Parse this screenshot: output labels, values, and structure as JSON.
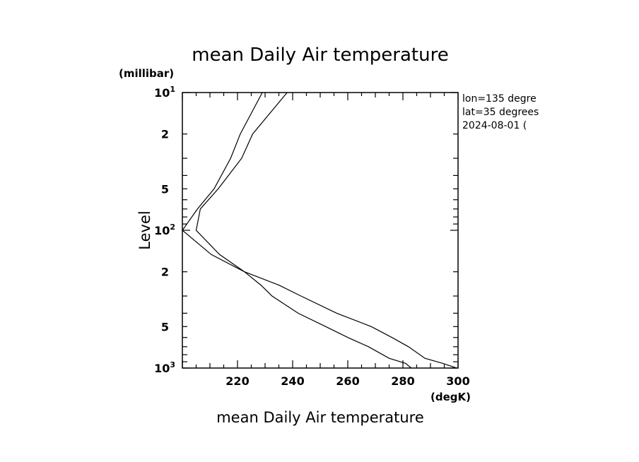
{
  "chart_data": {
    "type": "line",
    "title": "mean Daily Air temperature",
    "xlabel": "mean Daily Air temperature",
    "ylabel": "Level",
    "x_unit": "(degK)",
    "y_unit": "(millibar)",
    "xlim": [
      200,
      300
    ],
    "ylim": [
      1000,
      10
    ],
    "y_scale": "log",
    "grid": false,
    "x_ticks": [
      220,
      240,
      260,
      280,
      300
    ],
    "y_major_ticks": [
      {
        "value": 10,
        "base": "10",
        "exp": "1"
      },
      {
        "value": 100,
        "base": "10",
        "exp": "2"
      },
      {
        "value": 1000,
        "base": "10",
        "exp": "3"
      }
    ],
    "y_minor_labels": [
      {
        "value": 20,
        "label": "2"
      },
      {
        "value": 50,
        "label": "5"
      },
      {
        "value": 200,
        "label": "2"
      },
      {
        "value": 500,
        "label": "5"
      }
    ],
    "annotation": [
      "lon=135 degre",
      "lat=35 degrees",
      "2024-08-01 ("
    ],
    "series": [
      {
        "levels": [
          10,
          20,
          30,
          50,
          70,
          100,
          150,
          200,
          250,
          300,
          400,
          500,
          600,
          700,
          850,
          925,
          1000
        ],
        "values": [
          229.0,
          221.0,
          217.5,
          211.5,
          205.5,
          200.0,
          210.5,
          222.5,
          228.5,
          232.5,
          242.0,
          252.0,
          260.0,
          267.5,
          275.0,
          281.0,
          283.0
        ]
      },
      {
        "levels": [
          10,
          20,
          30,
          50,
          70,
          100,
          150,
          200,
          250,
          300,
          400,
          500,
          600,
          700,
          850,
          925,
          1000
        ],
        "values": [
          238.0,
          225.5,
          221.5,
          213.0,
          206.5,
          205.0,
          213.5,
          222.5,
          235.0,
          243.0,
          256.0,
          268.5,
          276.0,
          282.0,
          288.0,
          294.5,
          299.5
        ]
      }
    ]
  }
}
